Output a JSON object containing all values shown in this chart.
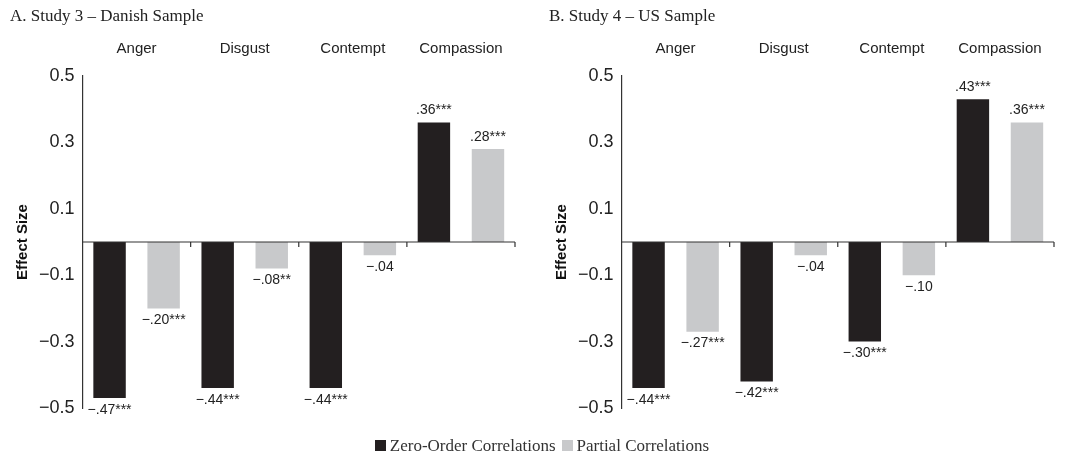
{
  "chart_data": [
    {
      "type": "bar",
      "title": "A. Study 3 – Danish Sample",
      "ylabel": "Effect Size",
      "categories": [
        "Anger",
        "Disgust",
        "Contempt",
        "Compassion"
      ],
      "ylim": [
        -0.5,
        0.5
      ],
      "yticks": [
        {
          "value": 0.5,
          "label": "0.5"
        },
        {
          "value": 0.3,
          "label": "0.3"
        },
        {
          "value": 0.1,
          "label": "0.1"
        },
        {
          "value": -0.1,
          "label": "−0.1"
        },
        {
          "value": -0.3,
          "label": "−0.3"
        },
        {
          "value": -0.5,
          "label": "−0.5"
        }
      ],
      "legend": "bottom",
      "series": [
        {
          "name": "Zero-Order Correlations",
          "color": "#231f20",
          "values": [
            -0.47,
            -0.44,
            -0.44,
            0.36
          ],
          "value_labels": [
            "−.47***",
            "−.44***",
            "−.44***",
            ".36***"
          ]
        },
        {
          "name": "Partial Correlations",
          "color": "#c8c9cb",
          "values": [
            -0.2,
            -0.08,
            -0.04,
            0.28
          ],
          "value_labels": [
            "−.20***",
            "−.08**",
            "−.04",
            ".28***"
          ]
        }
      ]
    },
    {
      "type": "bar",
      "title": "B. Study 4 – US Sample",
      "ylabel": "Effect Size",
      "categories": [
        "Anger",
        "Disgust",
        "Contempt",
        "Compassion"
      ],
      "ylim": [
        -0.5,
        0.5
      ],
      "yticks": [
        {
          "value": 0.5,
          "label": "0.5"
        },
        {
          "value": 0.3,
          "label": "0.3"
        },
        {
          "value": 0.1,
          "label": "0.1"
        },
        {
          "value": -0.1,
          "label": "−0.1"
        },
        {
          "value": -0.3,
          "label": "−0.3"
        },
        {
          "value": -0.5,
          "label": "−0.5"
        }
      ],
      "series": [
        {
          "color": "#231f20",
          "values": [
            -0.44,
            -0.42,
            -0.3,
            0.43
          ],
          "value_labels": [
            "−.44***",
            "−.42***",
            "−.30***",
            ".43***"
          ]
        },
        {
          "color": "#c8c9cb",
          "values": [
            -0.27,
            -0.04,
            -0.1,
            0.36
          ],
          "value_labels": [
            "−.27***",
            "−.04",
            "−.10",
            ".36***"
          ]
        }
      ]
    }
  ]
}
